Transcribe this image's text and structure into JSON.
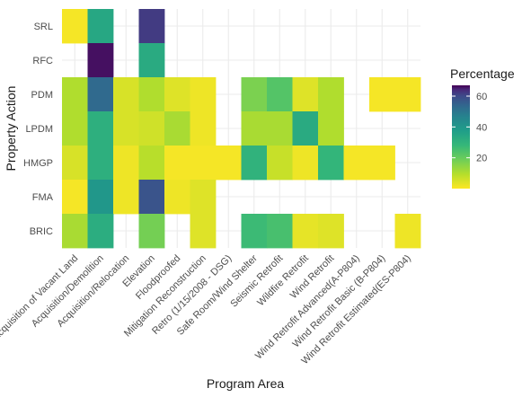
{
  "chart_data": {
    "type": "heatmap",
    "title": "",
    "xlabel": "Program Area",
    "ylabel": "Property Action",
    "x_categories": [
      "Acquisition of Vacant Land",
      "Acquisition/Demolition",
      "Acquisition/Relocation",
      "Elevation",
      "Floodproofed",
      "Mitigation Reconstruction",
      "Retro (1/15/2008 - DSG)",
      "Safe Room/Wind Shelter",
      "Seismic Retrofit",
      "Wildfire Retrofit",
      "Wind Retrofit",
      "Wind Retrofit Advanced(A-P804)",
      "Wind Retrofit Basic (B-P804)",
      "Wind Retrofit Estimated(ES-P804)"
    ],
    "y_categories": [
      "SRL",
      "RFC",
      "PDM",
      "LPDM",
      "HMGP",
      "FMA",
      "BRIC"
    ],
    "cells": [
      {
        "y": "SRL",
        "x": "Acquisition of Vacant Land",
        "value": 1
      },
      {
        "y": "SRL",
        "x": "Acquisition/Demolition",
        "value": 34
      },
      {
        "y": "SRL",
        "x": "Elevation",
        "value": 62
      },
      {
        "y": "RFC",
        "x": "Acquisition/Demolition",
        "value": 66
      },
      {
        "y": "RFC",
        "x": "Elevation",
        "value": 33
      },
      {
        "y": "PDM",
        "x": "Acquisition of Vacant Land",
        "value": 10
      },
      {
        "y": "PDM",
        "x": "Acquisition/Demolition",
        "value": 53
      },
      {
        "y": "PDM",
        "x": "Acquisition/Relocation",
        "value": 5
      },
      {
        "y": "PDM",
        "x": "Elevation",
        "value": 10
      },
      {
        "y": "PDM",
        "x": "Floodproofed",
        "value": 4
      },
      {
        "y": "PDM",
        "x": "Mitigation Reconstruction",
        "value": 2
      },
      {
        "y": "PDM",
        "x": "Safe Room/Wind Shelter",
        "value": 17
      },
      {
        "y": "PDM",
        "x": "Seismic Retrofit",
        "value": 23
      },
      {
        "y": "PDM",
        "x": "Wildfire Retrofit",
        "value": 4
      },
      {
        "y": "PDM",
        "x": "Wind Retrofit",
        "value": 10
      },
      {
        "y": "PDM",
        "x": "Wind Retrofit Basic (B-P804)",
        "value": 1
      },
      {
        "y": "PDM",
        "x": "Wind Retrofit Estimated(ES-P804)",
        "value": 1
      },
      {
        "y": "LPDM",
        "x": "Acquisition of Vacant Land",
        "value": 10
      },
      {
        "y": "LPDM",
        "x": "Acquisition/Demolition",
        "value": 31
      },
      {
        "y": "LPDM",
        "x": "Acquisition/Relocation",
        "value": 5
      },
      {
        "y": "LPDM",
        "x": "Elevation",
        "value": 6
      },
      {
        "y": "LPDM",
        "x": "Floodproofed",
        "value": 11
      },
      {
        "y": "LPDM",
        "x": "Mitigation Reconstruction",
        "value": 2
      },
      {
        "y": "LPDM",
        "x": "Safe Room/Wind Shelter",
        "value": 11
      },
      {
        "y": "LPDM",
        "x": "Seismic Retrofit",
        "value": 11
      },
      {
        "y": "LPDM",
        "x": "Wildfire Retrofit",
        "value": 33
      },
      {
        "y": "LPDM",
        "x": "Wind Retrofit",
        "value": 10
      },
      {
        "y": "HMGP",
        "x": "Acquisition of Vacant Land",
        "value": 5
      },
      {
        "y": "HMGP",
        "x": "Acquisition/Demolition",
        "value": 31
      },
      {
        "y": "HMGP",
        "x": "Acquisition/Relocation",
        "value": 2
      },
      {
        "y": "HMGP",
        "x": "Elevation",
        "value": 9
      },
      {
        "y": "HMGP",
        "x": "Floodproofed",
        "value": 1
      },
      {
        "y": "HMGP",
        "x": "Mitigation Reconstruction",
        "value": 1
      },
      {
        "y": "HMGP",
        "x": "Retro (1/15/2008 - DSG)",
        "value": 1
      },
      {
        "y": "HMGP",
        "x": "Safe Room/Wind Shelter",
        "value": 30
      },
      {
        "y": "HMGP",
        "x": "Seismic Retrofit",
        "value": 7
      },
      {
        "y": "HMGP",
        "x": "Wildfire Retrofit",
        "value": 2
      },
      {
        "y": "HMGP",
        "x": "Wind Retrofit",
        "value": 29
      },
      {
        "y": "HMGP",
        "x": "Wind Retrofit Advanced(A-P804)",
        "value": 1
      },
      {
        "y": "HMGP",
        "x": "Wind Retrofit Basic (B-P804)",
        "value": 1
      },
      {
        "y": "FMA",
        "x": "Acquisition of Vacant Land",
        "value": 1
      },
      {
        "y": "FMA",
        "x": "Acquisition/Demolition",
        "value": 40
      },
      {
        "y": "FMA",
        "x": "Acquisition/Relocation",
        "value": 2
      },
      {
        "y": "FMA",
        "x": "Elevation",
        "value": 58
      },
      {
        "y": "FMA",
        "x": "Floodproofed",
        "value": 2
      },
      {
        "y": "FMA",
        "x": "Mitigation Reconstruction",
        "value": 4
      },
      {
        "y": "BRIC",
        "x": "Acquisition of Vacant Land",
        "value": 11
      },
      {
        "y": "BRIC",
        "x": "Acquisition/Demolition",
        "value": 32
      },
      {
        "y": "BRIC",
        "x": "Elevation",
        "value": 18
      },
      {
        "y": "BRIC",
        "x": "Mitigation Reconstruction",
        "value": 4
      },
      {
        "y": "BRIC",
        "x": "Safe Room/Wind Shelter",
        "value": 27
      },
      {
        "y": "BRIC",
        "x": "Seismic Retrofit",
        "value": 25
      },
      {
        "y": "BRIC",
        "x": "Wildfire Retrofit",
        "value": 3
      },
      {
        "y": "BRIC",
        "x": "Wind Retrofit",
        "value": 4
      },
      {
        "y": "BRIC",
        "x": "Wind Retrofit Estimated(ES-P804)",
        "value": 2
      }
    ],
    "legend": {
      "title": "Percentage",
      "ticks": [
        20,
        40,
        60
      ],
      "range": [
        0,
        67
      ],
      "colormap": "viridis (reversed)",
      "placement": "right"
    },
    "grid": true,
    "background": "#ffffff",
    "gridline_color": "#ebebeb"
  }
}
